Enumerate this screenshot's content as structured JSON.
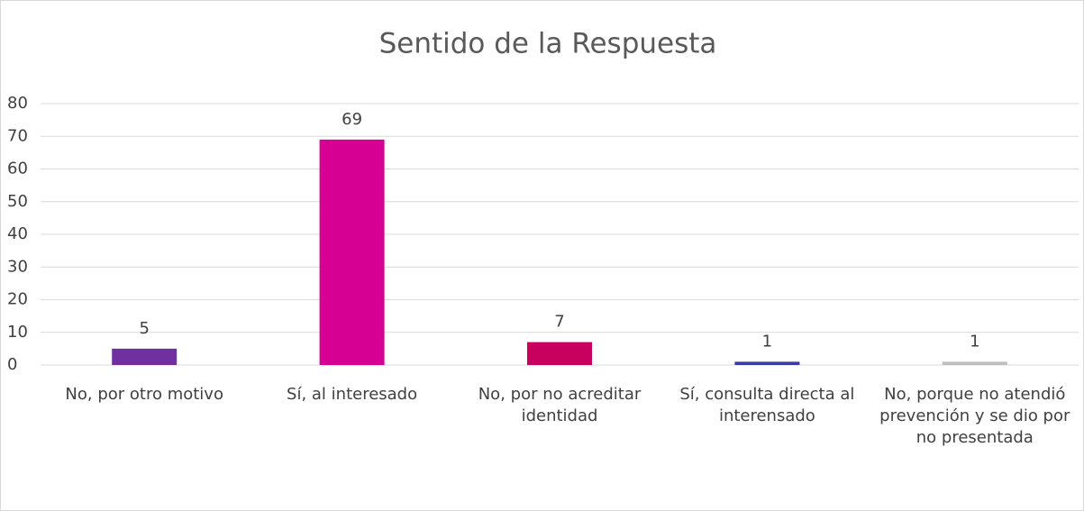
{
  "chart_data": {
    "type": "bar",
    "title": "Sentido de la Respuesta",
    "categories": [
      "No, por otro motivo",
      "Sí, al interesado",
      "No, por no acreditar identidad",
      "Sí, consulta directa al interensado",
      "No, porque no atendió prevención y se dio por no presentada"
    ],
    "values": [
      5,
      69,
      7,
      1,
      1
    ],
    "colors": [
      "#7030a0",
      "#d60093",
      "#c8005e",
      "#3b3ba3",
      "#bfbfbf"
    ],
    "ylim": [
      0,
      80
    ],
    "yticks": [
      0,
      10,
      20,
      30,
      40,
      50,
      60,
      70,
      80
    ],
    "grid": true
  }
}
